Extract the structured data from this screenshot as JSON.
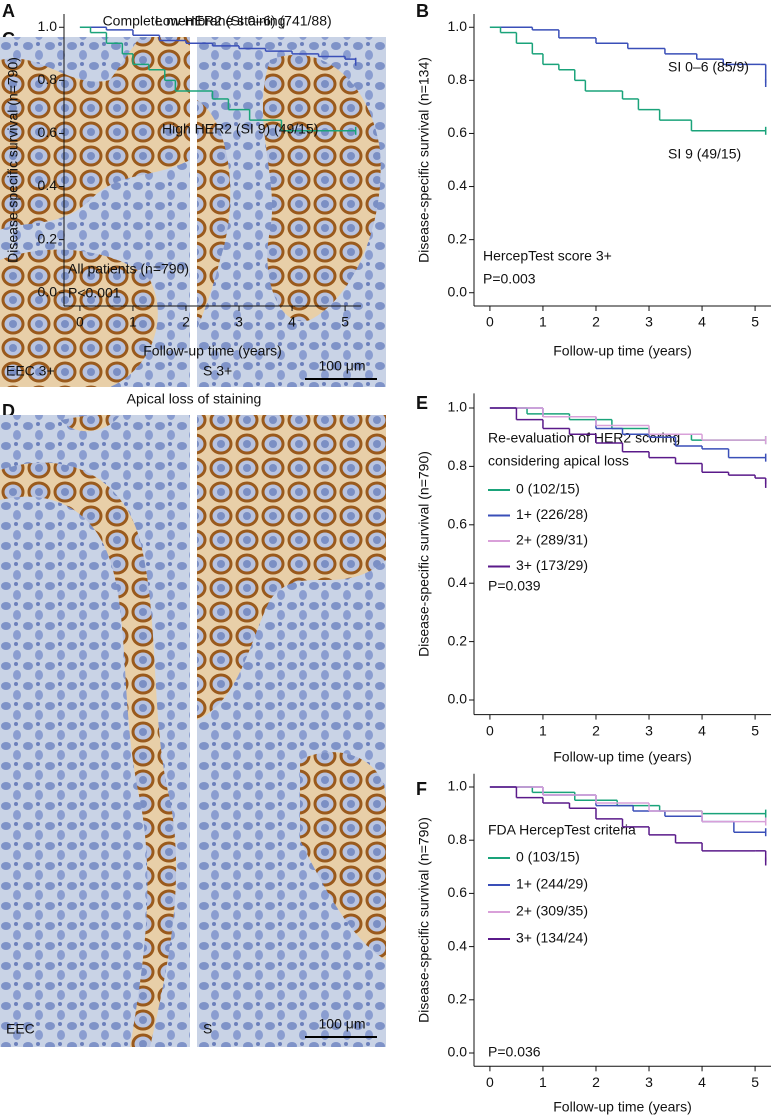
{
  "chart_data": [
    {
      "type": "line",
      "panel": "A",
      "x_label": "Follow-up time (years)",
      "y_label": "Disease-specific survival (n=790)",
      "xlim": [
        -0.3,
        5.3
      ],
      "ylim": [
        -0.05,
        1.05
      ],
      "xticks": [
        0,
        1,
        2,
        3,
        4,
        5
      ],
      "yticks": [
        {
          "value": 0,
          "label": "0.0"
        },
        0.2,
        0.4,
        0.6,
        0.8,
        {
          "value": 1,
          "label": "1.0"
        }
      ],
      "legend": "inline",
      "annotations": [
        "All patients (n=790)",
        "P<0.001"
      ],
      "series": [
        {
          "name": "Low HER2 (SI 0–6) (741/88)",
          "color": "#3a4fb8",
          "x": [
            0,
            0.5,
            1,
            1.5,
            2,
            2.5,
            3,
            3.5,
            4,
            4.5,
            5,
            5.2
          ],
          "values": [
            1,
            0.99,
            0.97,
            0.95,
            0.94,
            0.93,
            0.92,
            0.91,
            0.9,
            0.89,
            0.88,
            0.87
          ]
        },
        {
          "name": "High HER2 (SI 9) (49/15)",
          "color": "#1aa37a",
          "x": [
            0,
            0.2,
            0.5,
            0.8,
            1,
            1.3,
            1.6,
            1.8,
            2.5,
            2.8,
            3.2,
            3.8,
            5.2
          ],
          "values": [
            1,
            0.98,
            0.94,
            0.9,
            0.86,
            0.84,
            0.8,
            0.76,
            0.73,
            0.69,
            0.65,
            0.61,
            0.61
          ]
        }
      ]
    },
    {
      "type": "line",
      "panel": "B",
      "x_label": "Follow-up time (years)",
      "y_label": "Disease-specific survival (n=134)",
      "xlim": [
        -0.3,
        5.3
      ],
      "ylim": [
        -0.05,
        1.05
      ],
      "xticks": [
        0,
        1,
        2,
        3,
        4,
        5
      ],
      "yticks": [
        {
          "value": 0,
          "label": "0.0"
        },
        0.2,
        0.4,
        0.6,
        0.8,
        {
          "value": 1,
          "label": "1.0"
        }
      ],
      "legend": "inline",
      "annotations": [
        "HercepTest score 3+",
        "P=0.003"
      ],
      "series": [
        {
          "name": "SI 0–6 (85/9)",
          "color": "#3a4fb8",
          "x": [
            0,
            0.8,
            1.3,
            2,
            2.6,
            3.3,
            3.9,
            4.4,
            5.1,
            5.2
          ],
          "values": [
            1,
            0.99,
            0.96,
            0.94,
            0.92,
            0.9,
            0.88,
            0.86,
            0.86,
            0.79
          ]
        },
        {
          "name": "SI 9 (49/15)",
          "color": "#1aa37a",
          "x": [
            0,
            0.2,
            0.5,
            0.8,
            1,
            1.3,
            1.6,
            1.8,
            2.5,
            2.8,
            3.2,
            3.8,
            5.2
          ],
          "values": [
            1,
            0.98,
            0.94,
            0.9,
            0.86,
            0.84,
            0.8,
            0.76,
            0.73,
            0.69,
            0.65,
            0.61,
            0.61
          ]
        }
      ]
    },
    {
      "type": "line",
      "panel": "E",
      "x_label": "Follow-up time (years)",
      "y_label": "Disease-specific survival (n=790)",
      "xlim": [
        -0.3,
        5.3
      ],
      "ylim": [
        -0.05,
        1.05
      ],
      "xticks": [
        0,
        1,
        2,
        3,
        4,
        5
      ],
      "yticks": [
        {
          "value": 0,
          "label": "0.0"
        },
        0.2,
        0.4,
        0.6,
        0.8,
        {
          "value": 1,
          "label": "1.0"
        }
      ],
      "legend": "lower left",
      "legend_title": [
        "Re-evaluation of HER2 scoring",
        "considering apical loss"
      ],
      "annotations": [
        "P=0.039"
      ],
      "series": [
        {
          "name": "0 (102/15)",
          "color": "#1aa37a",
          "x": [
            0,
            0.7,
            1.5,
            2.3,
            3,
            3.8,
            5.2
          ],
          "values": [
            1,
            0.98,
            0.96,
            0.93,
            0.91,
            0.89,
            0.89
          ]
        },
        {
          "name": "1+ (226/28)",
          "color": "#3a4fb8",
          "x": [
            0,
            1,
            2,
            2.5,
            3,
            3.5,
            4,
            4.5,
            5.2
          ],
          "values": [
            1,
            0.97,
            0.93,
            0.91,
            0.9,
            0.87,
            0.86,
            0.83,
            0.83
          ]
        },
        {
          "name": "2+ (289/31)",
          "color": "#d9a0d9",
          "x": [
            0,
            1,
            2,
            3,
            4,
            5.2
          ],
          "values": [
            1,
            0.97,
            0.94,
            0.91,
            0.89,
            0.89
          ]
        },
        {
          "name": "3+ (173/29)",
          "color": "#5a1a8a",
          "x": [
            0,
            0.5,
            1,
            1.5,
            2,
            2.5,
            3,
            3.5,
            4,
            4.5,
            5,
            5.2
          ],
          "values": [
            1,
            0.96,
            0.93,
            0.91,
            0.88,
            0.85,
            0.83,
            0.81,
            0.78,
            0.77,
            0.76,
            0.74
          ]
        }
      ]
    },
    {
      "type": "line",
      "panel": "F",
      "x_label": "Follow-up time (years)",
      "y_label": "Disease-specific survival (n=790)",
      "xlim": [
        -0.3,
        5.3
      ],
      "ylim": [
        -0.05,
        1.05
      ],
      "xticks": [
        0,
        1,
        2,
        3,
        4,
        5
      ],
      "yticks": [
        {
          "value": 0,
          "label": "0.0"
        },
        0.2,
        0.4,
        0.6,
        0.8,
        {
          "value": 1,
          "label": "1.0"
        }
      ],
      "legend": "lower left",
      "legend_title": [
        "FDA HercepTest criteria"
      ],
      "annotations": [
        "P=0.036"
      ],
      "series": [
        {
          "name": "0 (103/15)",
          "color": "#1aa37a",
          "x": [
            0,
            0.8,
            1.6,
            2.4,
            3.2,
            4,
            5.2
          ],
          "values": [
            1,
            0.98,
            0.95,
            0.93,
            0.91,
            0.9,
            0.9
          ]
        },
        {
          "name": "1+ (244/29)",
          "color": "#3a4fb8",
          "x": [
            0,
            1,
            2,
            2.7,
            3.3,
            4,
            4.6,
            5.2
          ],
          "values": [
            1,
            0.97,
            0.93,
            0.91,
            0.89,
            0.87,
            0.83,
            0.83
          ]
        },
        {
          "name": "2+ (309/35)",
          "color": "#d9a0d9",
          "x": [
            0,
            1,
            2,
            3,
            4,
            5.2
          ],
          "values": [
            1,
            0.97,
            0.94,
            0.91,
            0.87,
            0.87
          ]
        },
        {
          "name": "3+ (134/24)",
          "color": "#5a1a8a",
          "x": [
            0,
            0.5,
            1,
            1.5,
            2,
            2.5,
            3,
            3.5,
            4,
            5,
            5.2
          ],
          "values": [
            1,
            0.96,
            0.94,
            0.92,
            0.88,
            0.85,
            0.82,
            0.79,
            0.76,
            0.76,
            0.72
          ]
        }
      ]
    }
  ],
  "image_panels": [
    {
      "panel": "C",
      "title": "Complete membrane staining",
      "labels": [
        "EEC 3+",
        "S 3+"
      ],
      "scale_bar": "100 μm"
    },
    {
      "panel": "D",
      "title": "Apical loss of staining",
      "labels": [
        "EEC",
        "S"
      ],
      "scale_bar": "100 μm"
    }
  ]
}
